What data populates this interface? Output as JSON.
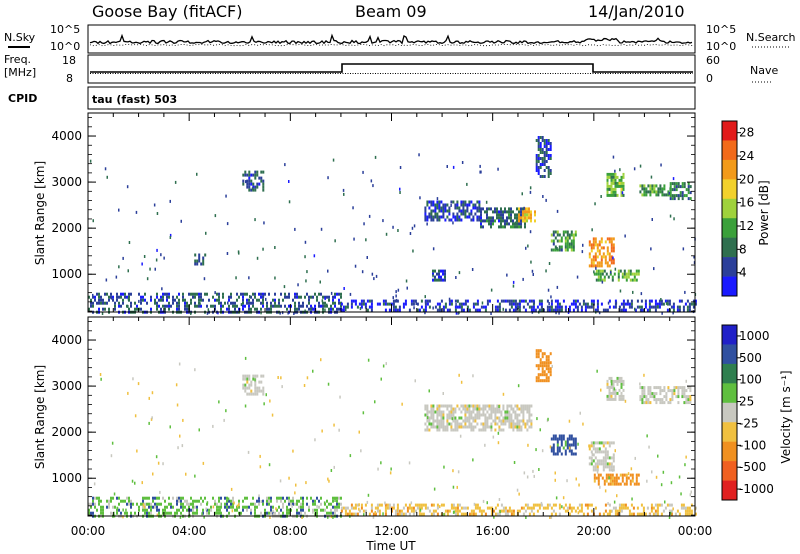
{
  "header": {
    "station": "Goose Bay (fitACF)",
    "beam": "Beam 09",
    "date": "14/Jan/2010"
  },
  "strips": {
    "nsky_label": "N.Sky",
    "nsearch_label": "N.Search",
    "noise_ticks": [
      "10^5",
      "10^0"
    ],
    "freq_label_1": "Freq.",
    "freq_label_2": "[MHz]",
    "freq_ticks": [
      18,
      8
    ],
    "nave_label": "Nave",
    "nave_ticks": [
      60,
      0
    ],
    "cpid_label": "CPID",
    "cpid_text": "tau (fast) 503"
  },
  "colors": {
    "power": [
      "#1a1aff",
      "#2b3f9a",
      "#2f6f4f",
      "#3aa03a",
      "#9fd23c",
      "#f2d12c",
      "#f29a1a",
      "#f26a1a",
      "#e21a1a"
    ],
    "velocity": [
      "#2020c8",
      "#3050a0",
      "#2f7f4f",
      "#5fbf3f",
      "#c8c8c0",
      "#f0c040",
      "#f09020",
      "#f06020",
      "#e02020"
    ]
  },
  "chart_data": [
    {
      "type": "heatmap",
      "title": "",
      "xlabel": "Time UT",
      "ylabel": "Slant Range [km]",
      "xlim": [
        "00:00",
        "24:00"
      ],
      "ylim": [
        180,
        4500
      ],
      "x_ticks": [
        "00:00",
        "04:00",
        "08:00",
        "12:00",
        "16:00",
        "20:00",
        "00:00"
      ],
      "y_ticks": [
        1000,
        2000,
        3000,
        4000
      ],
      "colorbar": {
        "label": "Power [dB]",
        "ticks": [
          4,
          8,
          12,
          16,
          20,
          24,
          28
        ],
        "range": [
          0,
          30
        ]
      },
      "regions": [
        {
          "t_start": 0.0,
          "t_end": 10.0,
          "r_start": 200,
          "r_end": 600,
          "value": 6
        },
        {
          "t_start": 6.1,
          "t_end": 6.9,
          "r_start": 2800,
          "r_end": 3250,
          "value": 6
        },
        {
          "t_start": 4.2,
          "t_end": 4.6,
          "r_start": 1200,
          "r_end": 1450,
          "value": 6
        },
        {
          "t_start": 13.3,
          "t_end": 15.5,
          "r_start": 2200,
          "r_end": 2600,
          "value": 5
        },
        {
          "t_start": 15.5,
          "t_end": 17.3,
          "r_start": 2050,
          "r_end": 2450,
          "value": 7
        },
        {
          "t_start": 17.0,
          "t_end": 17.7,
          "r_start": 2150,
          "r_end": 2450,
          "value": 19
        },
        {
          "t_start": 17.7,
          "t_end": 18.3,
          "r_start": 3100,
          "r_end": 4000,
          "value": 5
        },
        {
          "t_start": 18.3,
          "t_end": 19.3,
          "r_start": 1500,
          "r_end": 1950,
          "value": 10
        },
        {
          "t_start": 19.8,
          "t_end": 20.8,
          "r_start": 1200,
          "r_end": 1800,
          "value": 22
        },
        {
          "t_start": 20.0,
          "t_end": 21.8,
          "r_start": 850,
          "r_end": 1100,
          "value": 12
        },
        {
          "t_start": 20.5,
          "t_end": 21.2,
          "r_start": 2700,
          "r_end": 3200,
          "value": 13
        },
        {
          "t_start": 21.8,
          "t_end": 23.0,
          "r_start": 2750,
          "r_end": 2950,
          "value": 11
        },
        {
          "t_start": 23.0,
          "t_end": 23.8,
          "r_start": 2650,
          "r_end": 3000,
          "value": 9
        },
        {
          "t_start": 13.6,
          "t_end": 14.1,
          "r_start": 900,
          "r_end": 1100,
          "value": 6
        },
        {
          "t_start": 10.0,
          "t_end": 24.0,
          "r_start": 200,
          "r_end": 450,
          "value": 4
        }
      ]
    },
    {
      "type": "heatmap",
      "title": "",
      "xlabel": "Time UT",
      "ylabel": "Slant Range [km]",
      "xlim": [
        "00:00",
        "24:00"
      ],
      "ylim": [
        180,
        4500
      ],
      "x_ticks": [
        "00:00",
        "04:00",
        "08:00",
        "12:00",
        "16:00",
        "20:00",
        "00:00"
      ],
      "y_ticks": [
        1000,
        2000,
        3000,
        4000
      ],
      "colorbar": {
        "label": "Velocity [m s⁻¹]",
        "ticks": [
          1000,
          500,
          100,
          25,
          -25,
          -100,
          -500,
          -1000
        ]
      },
      "regions": [
        {
          "t_start": 0.0,
          "t_end": 10.0,
          "r_start": 200,
          "r_end": 600,
          "value": 60
        },
        {
          "t_start": 6.1,
          "t_end": 6.9,
          "r_start": 2800,
          "r_end": 3250,
          "value": 0
        },
        {
          "t_start": 13.3,
          "t_end": 17.5,
          "r_start": 2050,
          "r_end": 2600,
          "value": 0
        },
        {
          "t_start": 17.7,
          "t_end": 18.3,
          "r_start": 3100,
          "r_end": 3800,
          "value": -300
        },
        {
          "t_start": 18.3,
          "t_end": 19.3,
          "r_start": 1500,
          "r_end": 1950,
          "value": 200
        },
        {
          "t_start": 19.8,
          "t_end": 20.8,
          "r_start": 1200,
          "r_end": 1800,
          "value": 0
        },
        {
          "t_start": 20.0,
          "t_end": 21.8,
          "r_start": 850,
          "r_end": 1100,
          "value": -200
        },
        {
          "t_start": 20.5,
          "t_end": 21.2,
          "r_start": 2700,
          "r_end": 3200,
          "value": 0
        },
        {
          "t_start": 21.8,
          "t_end": 23.8,
          "r_start": 2650,
          "r_end": 3000,
          "value": 0
        },
        {
          "t_start": 10.0,
          "t_end": 24.0,
          "r_start": 200,
          "r_end": 450,
          "value": -60
        }
      ]
    }
  ]
}
